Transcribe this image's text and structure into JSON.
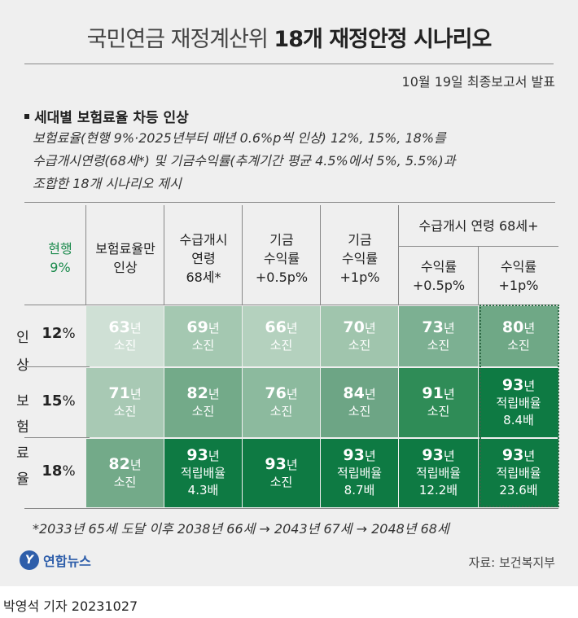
{
  "title": {
    "light": "국민연금 재정계산위",
    "bold": "18개 재정안정 시나리오"
  },
  "subtitle": "10월 19일 최종보고서 발표",
  "section_title": "세대별 보험료율 차등 인상",
  "description": [
    "보험료율(현행 9%·2025년부터 매년 0.6%p씩 인상) 12%, 15%, 18%를",
    "수급개시연령(68세*) 및 기금수익률(추계기간 평균 4.5%에서 5%, 5.5%)과",
    "조합한 18개 시나리오 제시"
  ],
  "headers": {
    "current": [
      "현행",
      "9%"
    ],
    "col1": [
      "보험료율만",
      "인상"
    ],
    "col2": [
      "수급개시",
      "연령",
      "68세*"
    ],
    "col3": [
      "기금",
      "수익률",
      "+0.5p%"
    ],
    "col4": [
      "기금",
      "수익률",
      "+1p%"
    ],
    "group": "수급개시 연령 68세+",
    "col5": [
      "수익률",
      "+0.5p%"
    ],
    "col6": [
      "수익률",
      "+1p%"
    ]
  },
  "side_label": [
    "인",
    "상",
    "보",
    "험",
    "료",
    "율"
  ],
  "rows": [
    {
      "rate": "12",
      "pct": "%",
      "cells": [
        {
          "num": "63",
          "unit": "년",
          "status": "소진",
          "ratio": ""
        },
        {
          "num": "69",
          "unit": "년",
          "status": "소진",
          "ratio": ""
        },
        {
          "num": "66",
          "unit": "년",
          "status": "소진",
          "ratio": ""
        },
        {
          "num": "70",
          "unit": "년",
          "status": "소진",
          "ratio": ""
        },
        {
          "num": "73",
          "unit": "년",
          "status": "소진",
          "ratio": ""
        },
        {
          "num": "80",
          "unit": "년",
          "status": "소진",
          "ratio": ""
        }
      ]
    },
    {
      "rate": "15",
      "pct": "%",
      "cells": [
        {
          "num": "71",
          "unit": "년",
          "status": "소진",
          "ratio": ""
        },
        {
          "num": "82",
          "unit": "년",
          "status": "소진",
          "ratio": ""
        },
        {
          "num": "76",
          "unit": "년",
          "status": "소진",
          "ratio": ""
        },
        {
          "num": "84",
          "unit": "년",
          "status": "소진",
          "ratio": ""
        },
        {
          "num": "91",
          "unit": "년",
          "status": "소진",
          "ratio": ""
        },
        {
          "num": "93",
          "unit": "년",
          "status": "적립배율",
          "ratio": "8.4배"
        }
      ]
    },
    {
      "rate": "18",
      "pct": "%",
      "cells": [
        {
          "num": "82",
          "unit": "년",
          "status": "소진",
          "ratio": ""
        },
        {
          "num": "93",
          "unit": "년",
          "status": "적립배율",
          "ratio": "4.3배"
        },
        {
          "num": "93",
          "unit": "년",
          "status": "소진",
          "ratio": ""
        },
        {
          "num": "93",
          "unit": "년",
          "status": "적립배율",
          "ratio": "8.7배"
        },
        {
          "num": "93",
          "unit": "년",
          "status": "적립배율",
          "ratio": "12.2배"
        },
        {
          "num": "93",
          "unit": "년",
          "status": "적립배율",
          "ratio": "23.6배"
        }
      ]
    }
  ],
  "cell_colors": [
    [
      "#cfe0d5",
      "#a4c8b1",
      "#b4d1be",
      "#a0c5ad",
      "#7cb092",
      "#6fa886"
    ],
    [
      "#a8c9b4",
      "#73aa89",
      "#8cba9e",
      "#6da585",
      "#2f8c57",
      "#0e7a43"
    ],
    [
      "#73aa89",
      "#0e7a43",
      "#0e7a43",
      "#0e7a43",
      "#0e7a43",
      "#0e7a43"
    ]
  ],
  "footnote": "*2033년 65세 도달 이후 2038년 66세 → 2043년 67세 → 2048년 68세",
  "logo": "연합뉴스",
  "source": "자료: 보건복지부",
  "reporter": "박영석 기자  20231027"
}
